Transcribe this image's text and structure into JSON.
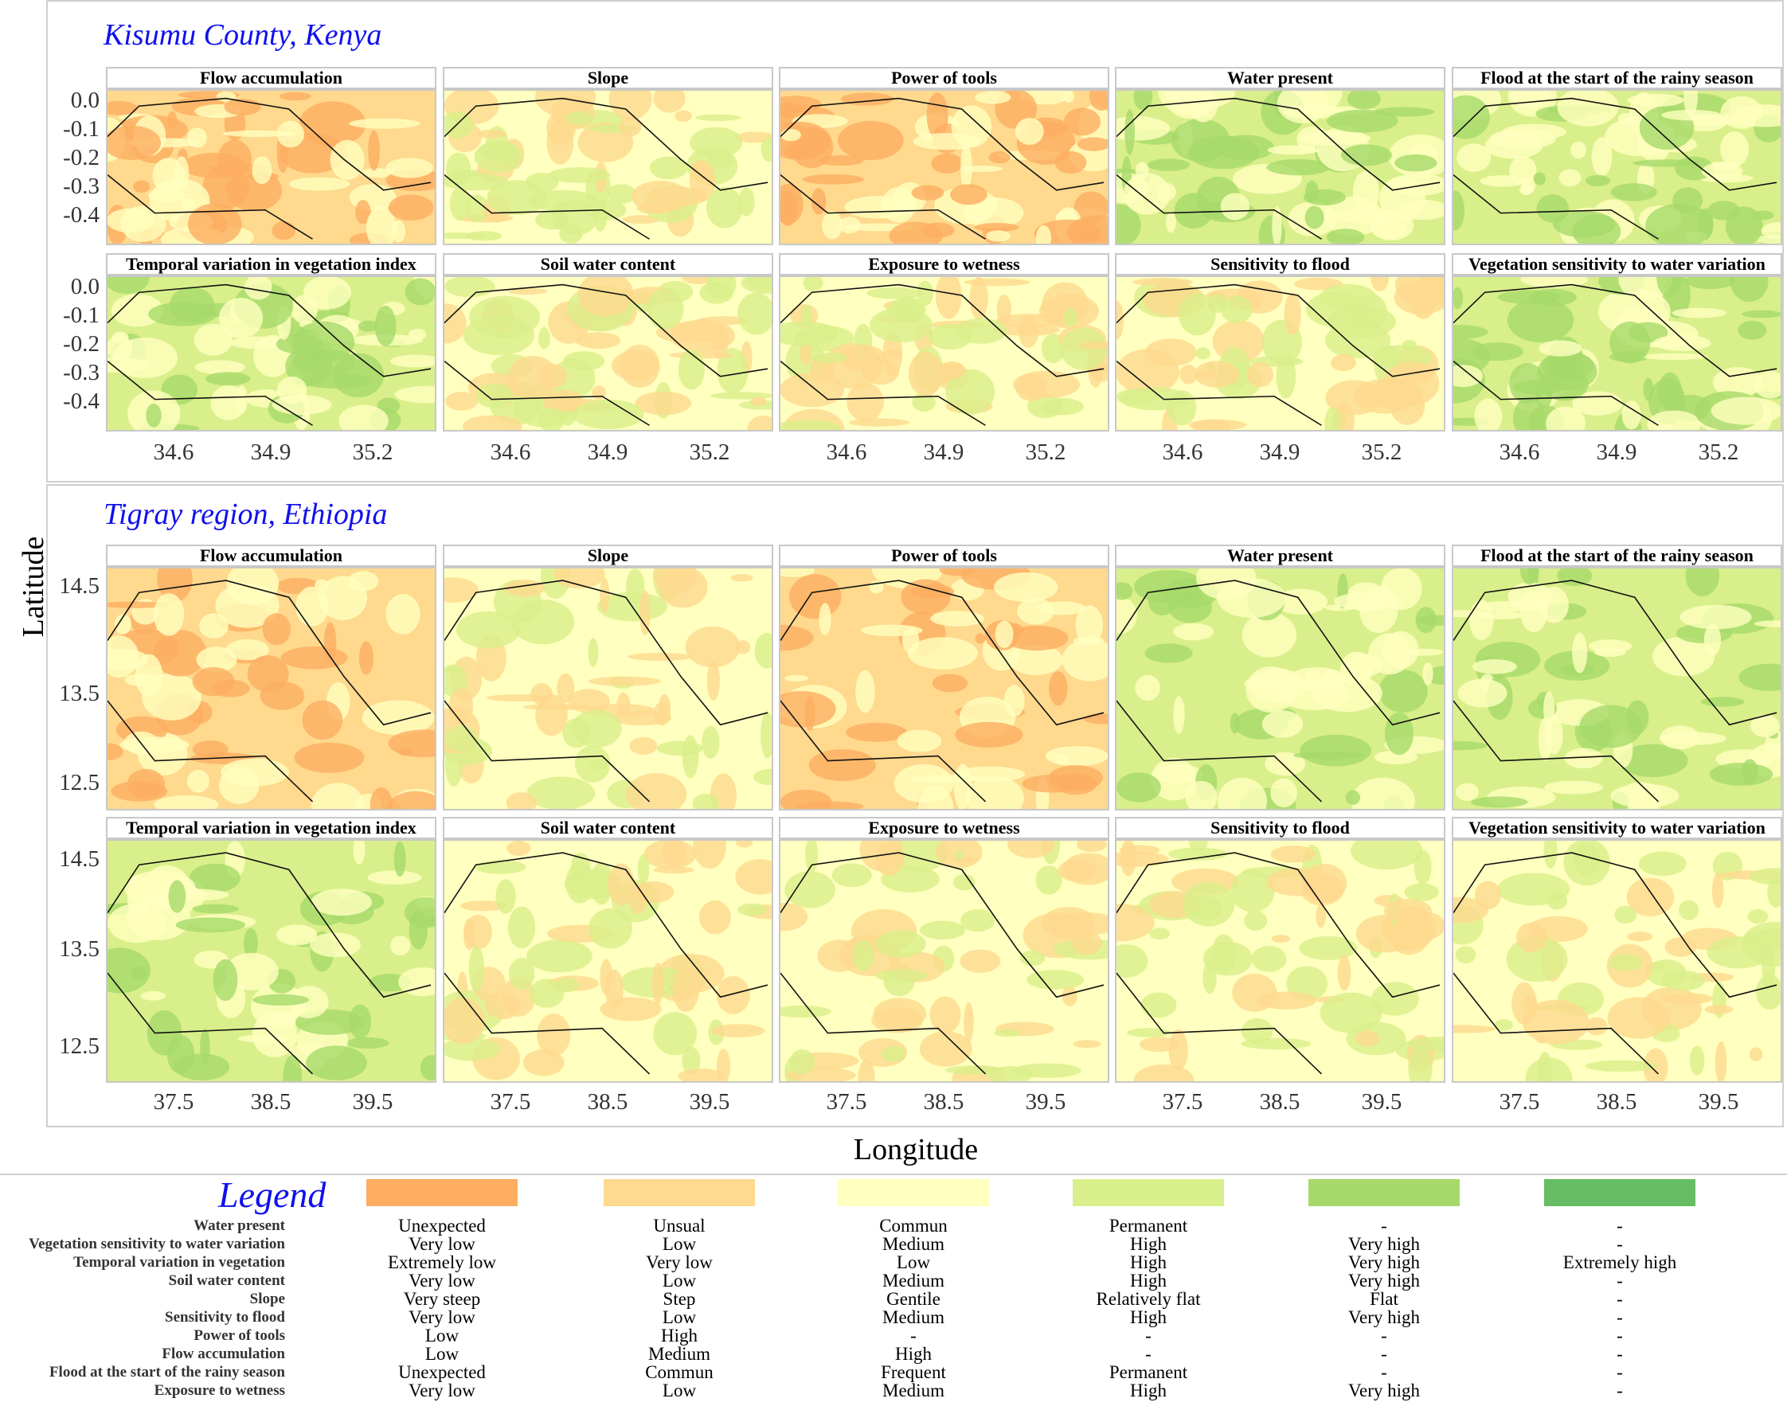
{
  "colors": {
    "c1": "#fdae61",
    "c2": "#fed98e",
    "c3": "#ffffbf",
    "c4": "#d9ef8b",
    "c5": "#a6d96a",
    "c6": "#66bd63"
  },
  "axis": {
    "ylabel": "Latitude",
    "xlabel": "Longitude"
  },
  "chart_data": [
    {
      "type": "heatmap",
      "region": "Kisumu County, Kenya",
      "panels": [
        {
          "title": "Flow accumulation",
          "dominant_class": 2
        },
        {
          "title": "Slope",
          "dominant_class": 3
        },
        {
          "title": "Power of tools",
          "dominant_class": 2
        },
        {
          "title": "Water present",
          "dominant_class": 4
        },
        {
          "title": "Flood at the start of the rainy season",
          "dominant_class": 4
        },
        {
          "title": "Temporal variation in vegetation index",
          "dominant_class": 4
        },
        {
          "title": "Soil water content",
          "dominant_class": 3
        },
        {
          "title": "Exposure to wetness",
          "dominant_class": 3
        },
        {
          "title": "Sensitivity to flood",
          "dominant_class": 3
        },
        {
          "title": "Vegetation sensitivity to water variation",
          "dominant_class": 4
        }
      ],
      "yticks": [
        "0.0",
        "-0.1",
        "-0.2",
        "-0.3",
        "-0.4"
      ],
      "xticks": [
        "34.6",
        "34.9",
        "35.2"
      ],
      "xlim": [
        34.42,
        35.35
      ],
      "ylim": [
        -0.41,
        0.04
      ]
    },
    {
      "type": "heatmap",
      "region": "Tigray region, Ethiopia",
      "panels": [
        {
          "title": "Flow accumulation",
          "dominant_class": 2
        },
        {
          "title": "Slope",
          "dominant_class": 3
        },
        {
          "title": "Power of tools",
          "dominant_class": 2
        },
        {
          "title": "Water present",
          "dominant_class": 4
        },
        {
          "title": "Flood at the start of the rainy season",
          "dominant_class": 4
        },
        {
          "title": "Temporal variation in vegetation index",
          "dominant_class": 4
        },
        {
          "title": "Soil water content",
          "dominant_class": 3
        },
        {
          "title": "Exposure to wetness",
          "dominant_class": 3
        },
        {
          "title": "Sensitivity to flood",
          "dominant_class": 3
        },
        {
          "title": "Vegetation sensitivity to water variation",
          "dominant_class": 3
        }
      ],
      "yticks": [
        "14.5",
        "13.5",
        "12.5"
      ],
      "xticks": [
        "37.5",
        "38.5",
        "39.5"
      ],
      "xlim": [
        36.4,
        39.9
      ],
      "ylim": [
        12.2,
        14.9
      ]
    }
  ],
  "legend": {
    "title": "Legend",
    "rows": [
      {
        "label": "Water present",
        "values": [
          "Unexpected",
          "Unsual",
          "Commun",
          "Permanent",
          "-",
          "-"
        ]
      },
      {
        "label": "Vegetation sensitivity to water variation",
        "values": [
          "Very low",
          "Low",
          "Medium",
          "High",
          "Very high",
          "-"
        ]
      },
      {
        "label": "Temporal variation in vegetation",
        "values": [
          "Extremely low",
          "Very low",
          "Low",
          "High",
          "Very high",
          "Extremely high"
        ]
      },
      {
        "label": "Soil water content",
        "values": [
          "Very low",
          "Low",
          "Medium",
          "High",
          "Very high",
          "-"
        ]
      },
      {
        "label": "Slope",
        "values": [
          "Very steep",
          "Step",
          "Gentile",
          "Relatively flat",
          "Flat",
          "-"
        ]
      },
      {
        "label": "Sensitivity to flood",
        "values": [
          "Very low",
          "Low",
          "Medium",
          "High",
          "Very high",
          "-"
        ]
      },
      {
        "label": "Power of tools",
        "values": [
          "Low",
          "High",
          "-",
          "-",
          "-",
          "-"
        ]
      },
      {
        "label": "Flow accumulation",
        "values": [
          "Low",
          "Medium",
          "High",
          "-",
          "-",
          "-"
        ]
      },
      {
        "label": "Flood at the start of the rainy season",
        "values": [
          "Unexpected",
          "Commun",
          "Frequent",
          "Permanent",
          "-",
          "-"
        ]
      },
      {
        "label": "Exposure to wetness",
        "values": [
          "Very low",
          "Low",
          "Medium",
          "High",
          "Very high",
          "-"
        ]
      }
    ]
  }
}
